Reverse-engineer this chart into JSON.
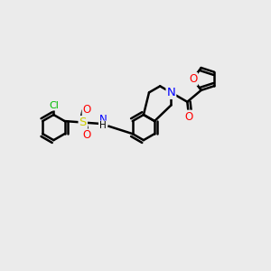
{
  "background_color": "#ebebeb",
  "bond_color": "#000000",
  "bond_width": 1.8,
  "atom_colors": {
    "C": "#000000",
    "N": "#0000ff",
    "O": "#ff0000",
    "S": "#cccc00",
    "Cl": "#00bb00",
    "H": "#000000"
  },
  "font_size": 8.5,
  "fig_width": 3.0,
  "fig_height": 3.0,
  "dpi": 100
}
